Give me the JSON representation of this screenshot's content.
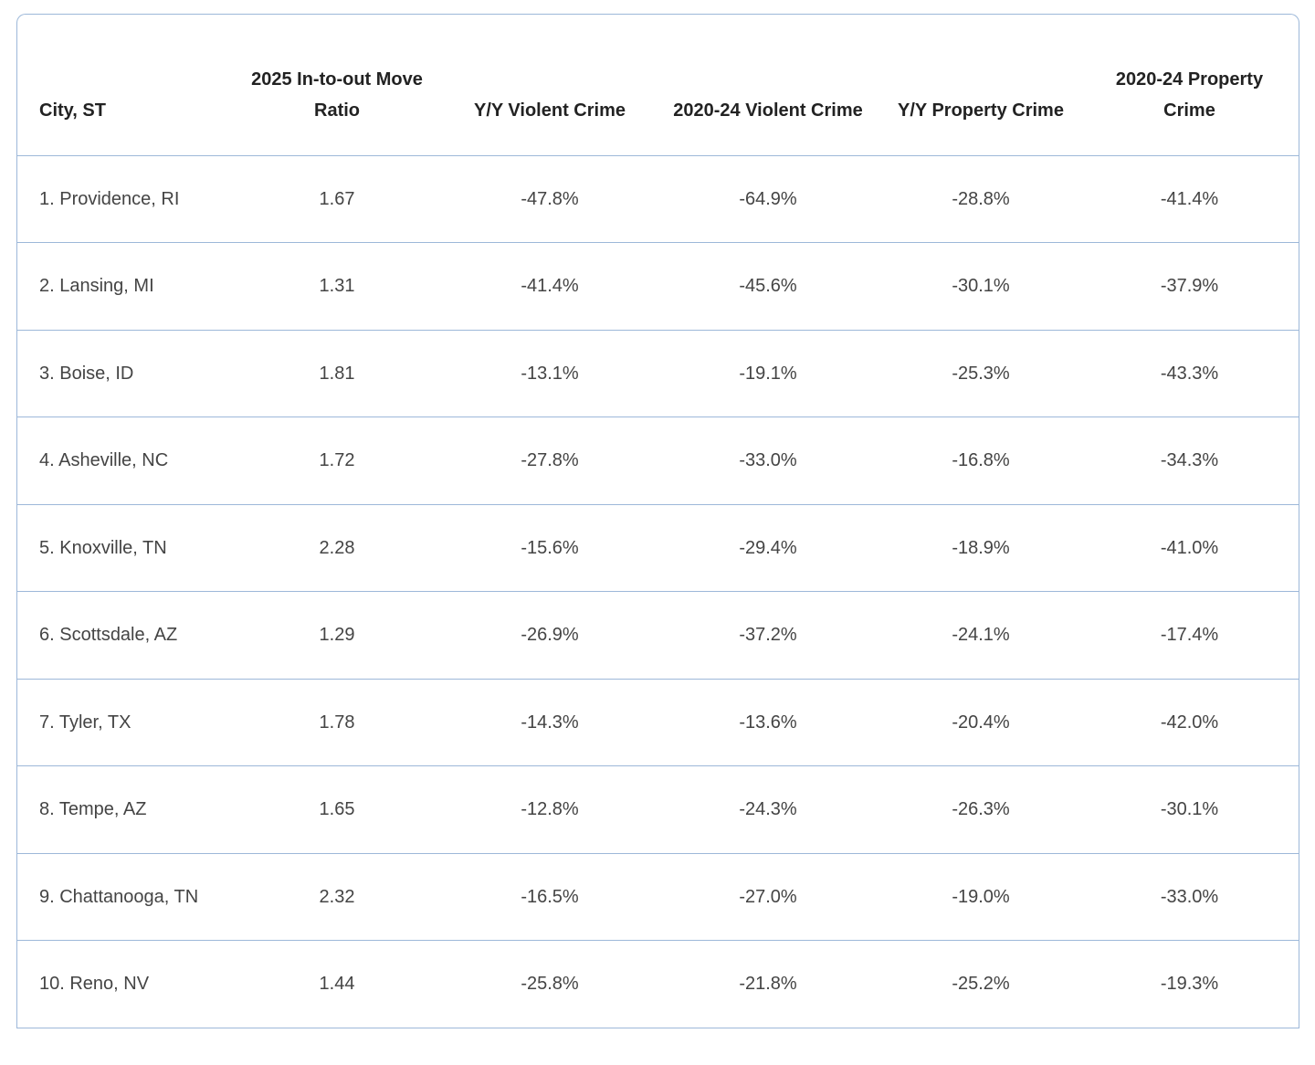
{
  "table": {
    "columns": [
      "City, ST",
      "2025 In-to-out Move Ratio",
      "Y/Y Violent Crime",
      "2020-24 Violent Crime",
      "Y/Y Property Crime",
      "2020-24 Property Crime"
    ],
    "rows": [
      [
        "1. Providence, RI",
        "1.67",
        "-47.8%",
        "-64.9%",
        "-28.8%",
        "-41.4%"
      ],
      [
        "2. Lansing, MI",
        "1.31",
        "-41.4%",
        "-45.6%",
        "-30.1%",
        "-37.9%"
      ],
      [
        "3. Boise, ID",
        "1.81",
        "-13.1%",
        "-19.1%",
        "-25.3%",
        "-43.3%"
      ],
      [
        "4. Asheville, NC",
        "1.72",
        "-27.8%",
        "-33.0%",
        "-16.8%",
        "-34.3%"
      ],
      [
        "5. Knoxville, TN",
        "2.28",
        "-15.6%",
        "-29.4%",
        "-18.9%",
        "-41.0%"
      ],
      [
        "6. Scottsdale, AZ",
        "1.29",
        "-26.9%",
        "-37.2%",
        "-24.1%",
        "-17.4%"
      ],
      [
        "7. Tyler, TX",
        "1.78",
        "-14.3%",
        "-13.6%",
        "-20.4%",
        "-42.0%"
      ],
      [
        "8. Tempe, AZ",
        "1.65",
        "-12.8%",
        "-24.3%",
        "-26.3%",
        "-30.1%"
      ],
      [
        "9. Chattanooga, TN",
        "2.32",
        "-16.5%",
        "-27.0%",
        "-19.0%",
        "-33.0%"
      ],
      [
        "10. Reno, NV",
        "1.44",
        "-25.8%",
        "-21.8%",
        "-25.2%",
        "-19.3%"
      ]
    ]
  }
}
